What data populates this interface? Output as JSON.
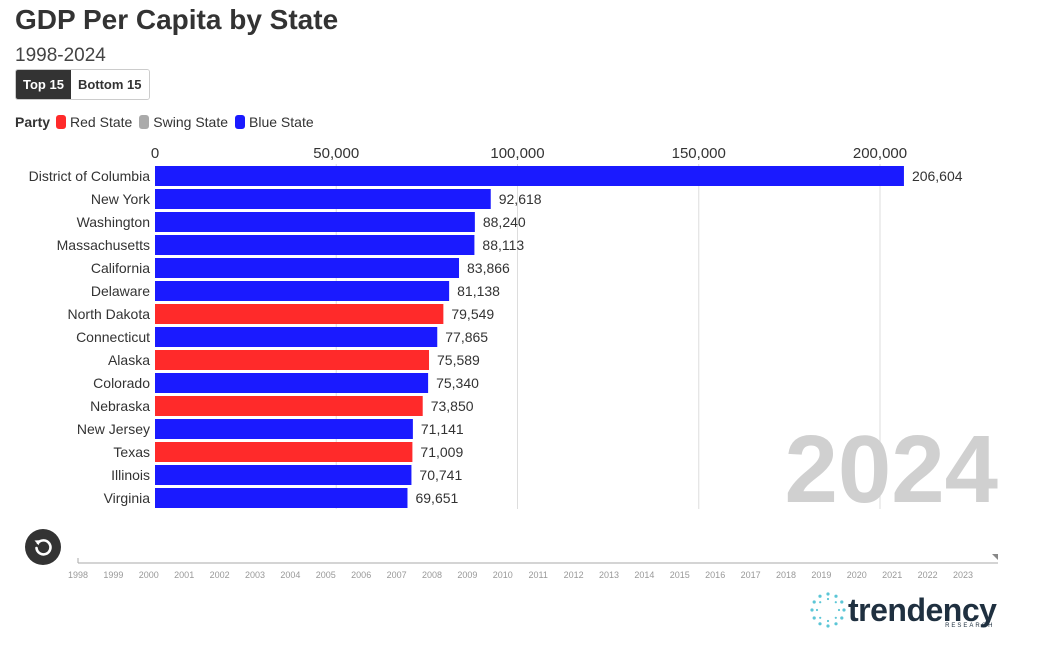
{
  "title": "GDP Per Capita by State",
  "subtitle": "1998-2024",
  "toggle": {
    "top_label": "Top 15",
    "bottom_label": "Bottom 15"
  },
  "legend": {
    "label": "Party",
    "items": [
      {
        "name": "Red State",
        "color": "#ff2a2a"
      },
      {
        "name": "Swing State",
        "color": "#aaaaaa"
      },
      {
        "name": "Blue State",
        "color": "#1a1aff"
      }
    ]
  },
  "chart_data": {
    "type": "bar",
    "orientation": "horizontal",
    "title": "GDP Per Capita by State",
    "year_label": "2024",
    "xlim": [
      0,
      220000
    ],
    "x_ticks": [
      0,
      50000,
      100000,
      150000,
      200000
    ],
    "x_tick_labels": [
      "0",
      "50,000",
      "100,000",
      "150,000",
      "200,000"
    ],
    "grid": true,
    "categories": [
      "District of Columbia",
      "New York",
      "Washington",
      "Massachusetts",
      "California",
      "Delaware",
      "North Dakota",
      "Connecticut",
      "Alaska",
      "Colorado",
      "Nebraska",
      "New Jersey",
      "Texas",
      "Illinois",
      "Virginia"
    ],
    "values": [
      206604,
      92618,
      88240,
      88113,
      83866,
      81138,
      79549,
      77865,
      75589,
      75340,
      73850,
      71141,
      71009,
      70741,
      69651
    ],
    "value_labels": [
      "206,604",
      "92,618",
      "88,240",
      "88,113",
      "83,866",
      "81,138",
      "79,549",
      "77,865",
      "75,589",
      "75,340",
      "73,850",
      "71,141",
      "71,009",
      "70,741",
      "69,651"
    ],
    "party": [
      "Blue State",
      "Blue State",
      "Blue State",
      "Blue State",
      "Blue State",
      "Blue State",
      "Red State",
      "Blue State",
      "Red State",
      "Blue State",
      "Red State",
      "Blue State",
      "Red State",
      "Blue State",
      "Blue State"
    ]
  },
  "timeline": {
    "years": [
      "1998",
      "1999",
      "2000",
      "2001",
      "2002",
      "2003",
      "2004",
      "2005",
      "2006",
      "2007",
      "2008",
      "2009",
      "2010",
      "2011",
      "2012",
      "2013",
      "2014",
      "2015",
      "2016",
      "2017",
      "2018",
      "2019",
      "2020",
      "2021",
      "2022",
      "2023"
    ],
    "current": "2024"
  },
  "reset_icon": "reset-icon",
  "logo": {
    "word": "trendency",
    "sub": "RESEARCH"
  }
}
